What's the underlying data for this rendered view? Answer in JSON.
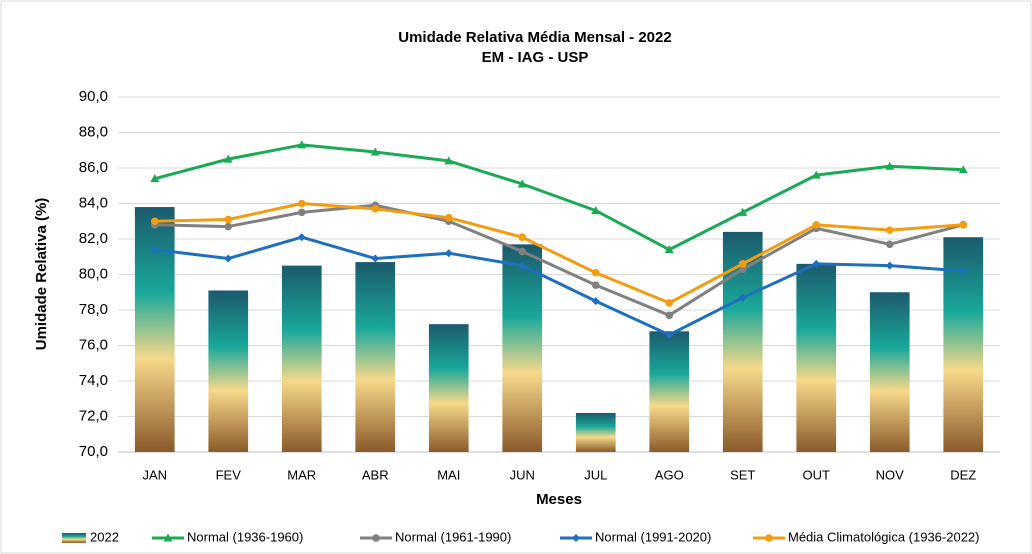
{
  "chart_data": {
    "type": "bar",
    "title": "Umidade Relativa Média Mensal - 2022",
    "subtitle": "EM - IAG - USP",
    "x_label": "Meses",
    "y_label": "Umidade Relativa (%)",
    "categories": [
      "JAN",
      "FEV",
      "MAR",
      "ABR",
      "MAI",
      "JUN",
      "JUL",
      "AGO",
      "SET",
      "OUT",
      "NOV",
      "DEZ"
    ],
    "ylim": [
      70,
      90
    ],
    "yticks": [
      {
        "value": 70,
        "label": "70,0"
      },
      {
        "value": 72,
        "label": "72,0"
      },
      {
        "value": 74,
        "label": "74,0"
      },
      {
        "value": 76,
        "label": "76,0"
      },
      {
        "value": 78,
        "label": "78,0"
      },
      {
        "value": 80,
        "label": "80,0"
      },
      {
        "value": 82,
        "label": "82,0"
      },
      {
        "value": 84,
        "label": "84,0"
      },
      {
        "value": 86,
        "label": "86,0"
      },
      {
        "value": 88,
        "label": "88,0"
      },
      {
        "value": 90,
        "label": "90,0"
      }
    ],
    "grid": true,
    "legend": "bottom",
    "series": [
      {
        "name": "2022",
        "type": "bar",
        "color": "#1aa89a",
        "values": [
          83.8,
          79.1,
          80.5,
          80.7,
          77.2,
          81.7,
          72.2,
          76.8,
          82.4,
          80.6,
          79.0,
          82.1
        ]
      },
      {
        "name": "Normal (1936-1960)",
        "type": "line",
        "marker": "triangle",
        "color": "#1aaa55",
        "values": [
          85.4,
          86.5,
          87.3,
          86.9,
          86.4,
          85.1,
          83.6,
          81.4,
          83.5,
          85.6,
          86.1,
          85.9
        ]
      },
      {
        "name": "Normal (1961-1990)",
        "type": "line",
        "marker": "circle",
        "color": "#808080",
        "values": [
          82.8,
          82.7,
          83.5,
          83.9,
          83.0,
          81.3,
          79.4,
          77.7,
          80.3,
          82.6,
          81.7,
          82.8
        ]
      },
      {
        "name": "Normal (1991-2020)",
        "type": "line",
        "marker": "diamond",
        "color": "#1f6fbf",
        "values": [
          81.4,
          80.9,
          82.1,
          80.9,
          81.2,
          80.5,
          78.5,
          76.6,
          78.7,
          80.6,
          80.5,
          80.2
        ]
      },
      {
        "name": "Média Climatológica (1936-2022)",
        "type": "line",
        "marker": "circle",
        "color": "#f39c12",
        "values": [
          83.0,
          83.1,
          84.0,
          83.7,
          83.2,
          82.1,
          80.1,
          78.4,
          80.6,
          82.8,
          82.5,
          82.8
        ]
      }
    ]
  }
}
